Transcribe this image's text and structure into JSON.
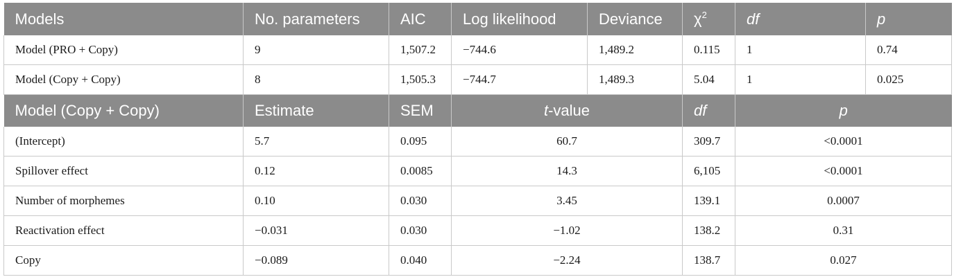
{
  "table1": {
    "headers": [
      "Models",
      "No. parameters",
      "AIC",
      "Log likelihood",
      "Deviance",
      "χ",
      "df",
      "p"
    ],
    "chi_superscript": "2",
    "rows": [
      [
        "Model (PRO + Copy)",
        "9",
        "1,507.2",
        "−744.6",
        "1,489.2",
        "0.115",
        "1",
        "0.74"
      ],
      [
        "Model (Copy + Copy)",
        "8",
        "1,505.3",
        "−744.7",
        "1,489.3",
        "5.04",
        "1",
        "0.025"
      ]
    ]
  },
  "table2": {
    "headers": [
      "Model (Copy + Copy)",
      "Estimate",
      "SEM",
      "-value",
      "df",
      "p"
    ],
    "t_italic": "t",
    "rows": [
      [
        "(Intercept)",
        "5.7",
        "0.095",
        "60.7",
        "309.7",
        "<0.0001"
      ],
      [
        "Spillover effect",
        "0.12",
        "0.0085",
        "14.3",
        "6,105",
        "<0.0001"
      ],
      [
        "Number of morphemes",
        "0.10",
        "0.030",
        "3.45",
        "139.1",
        "0.0007"
      ],
      [
        "Reactivation effect",
        "−0.031",
        "0.030",
        "−1.02",
        "138.2",
        "0.31"
      ],
      [
        "Copy",
        "−0.089",
        "0.040",
        "−2.24",
        "138.7",
        "0.027"
      ]
    ]
  }
}
